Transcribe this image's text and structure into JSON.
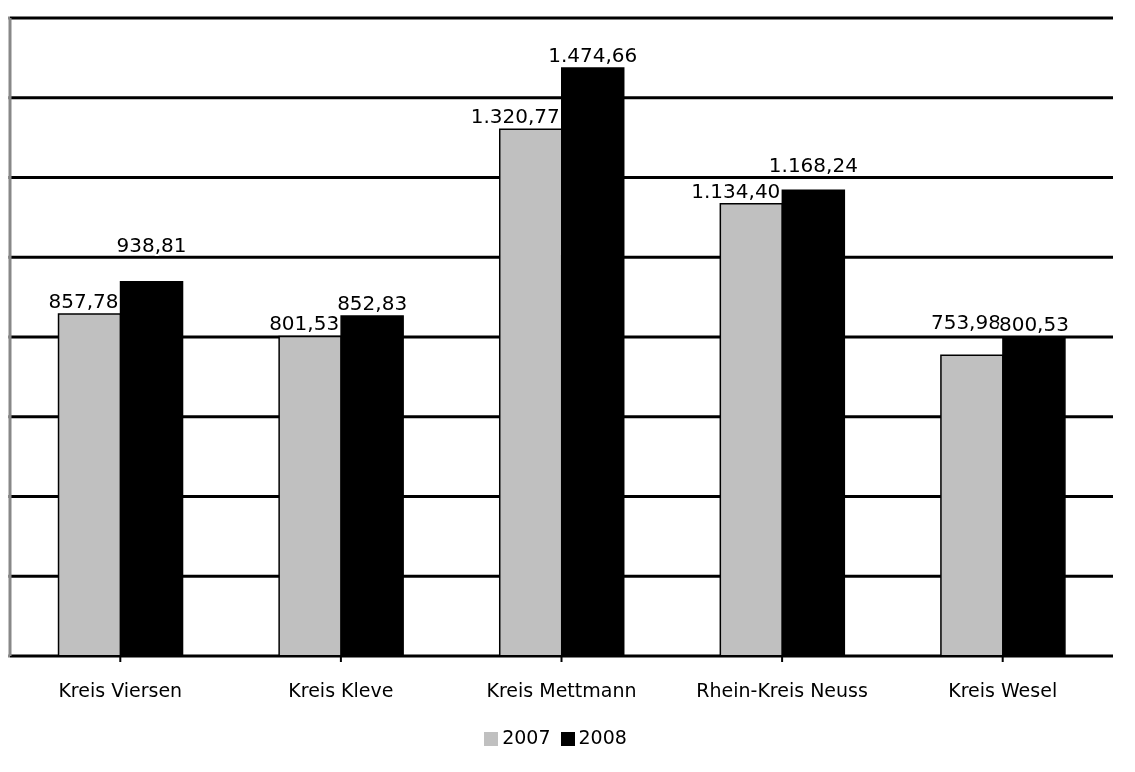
{
  "chart_data": {
    "type": "bar",
    "categories": [
      "Kreis Viersen",
      "Kreis Kleve",
      "Kreis Mettmann",
      "Rhein-Kreis Neuss",
      "Kreis Wesel"
    ],
    "series": [
      {
        "name": "2007",
        "color": "#c0c0c0",
        "values": [
          857.78,
          801.53,
          1320.77,
          1134.4,
          753.98
        ],
        "value_labels": [
          "857,78",
          "801,53",
          "1.320,77",
          "1.134,40",
          "753,98"
        ]
      },
      {
        "name": "2008",
        "color": "#000000",
        "values": [
          938.81,
          852.83,
          1474.66,
          1168.24,
          800.53
        ],
        "value_labels": [
          "938,81",
          "852,83",
          "1.474,66",
          "1.168,24",
          "800,53"
        ]
      }
    ],
    "ylim": [
      0,
      1600
    ],
    "yticks": [
      {
        "value": 0,
        "label": null
      },
      {
        "value": 200,
        "label": null
      },
      {
        "value": 400,
        "label": null
      },
      {
        "value": 600,
        "label": null
      },
      {
        "value": 800,
        "label": null
      },
      {
        "value": 1000,
        "label": null
      },
      {
        "value": 1200,
        "label": null
      },
      {
        "value": 1400,
        "label": null
      },
      {
        "value": 1600,
        "label": null
      }
    ],
    "grid": "y",
    "legend": "bottom",
    "tick_labels": "x"
  }
}
